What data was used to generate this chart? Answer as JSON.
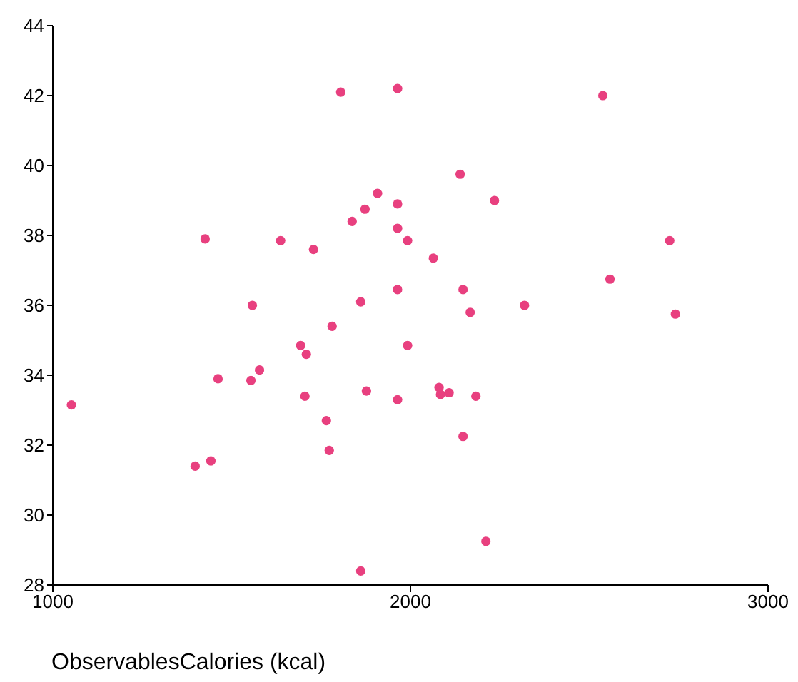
{
  "chart_data": {
    "type": "scatter",
    "xlabel": "ObservablesCalories (kcal)",
    "xlim": [
      1000,
      3000
    ],
    "xticks": [
      1000,
      2000,
      3000
    ],
    "ylim": [
      28,
      44
    ],
    "yticks": [
      28,
      30,
      32,
      34,
      36,
      38,
      40,
      42,
      44
    ],
    "marker": "circle",
    "series": [
      {
        "color": "#e8407f",
        "x": [
          1052,
          1398,
          1442,
          1426,
          1462,
          1558,
          1554,
          1578,
          1637,
          1693,
          1709,
          1705,
          1729,
          1765,
          1773,
          1781,
          1805,
          1837,
          1861,
          1873,
          1861,
          1877,
          1908,
          1964,
          1964,
          1964,
          1964,
          1964,
          1992,
          1992,
          2064,
          2080,
          2084,
          2108,
          2139,
          2147,
          2147,
          2167,
          2183,
          2211,
          2235,
          2319,
          2538,
          2558,
          2725,
          2741
        ],
        "values": [
          33.15,
          31.4,
          31.55,
          37.9,
          33.9,
          36.0,
          33.85,
          34.15,
          37.85,
          34.85,
          34.6,
          33.4,
          37.6,
          32.7,
          31.85,
          35.4,
          42.1,
          38.4,
          36.1,
          38.75,
          28.4,
          33.55,
          39.2,
          42.2,
          38.9,
          38.2,
          36.45,
          33.3,
          37.85,
          34.85,
          37.35,
          33.65,
          33.45,
          33.5,
          39.75,
          36.45,
          32.25,
          35.8,
          33.4,
          29.25,
          39.0,
          36.0,
          42.0,
          36.75,
          37.85,
          35.75
        ]
      }
    ]
  }
}
